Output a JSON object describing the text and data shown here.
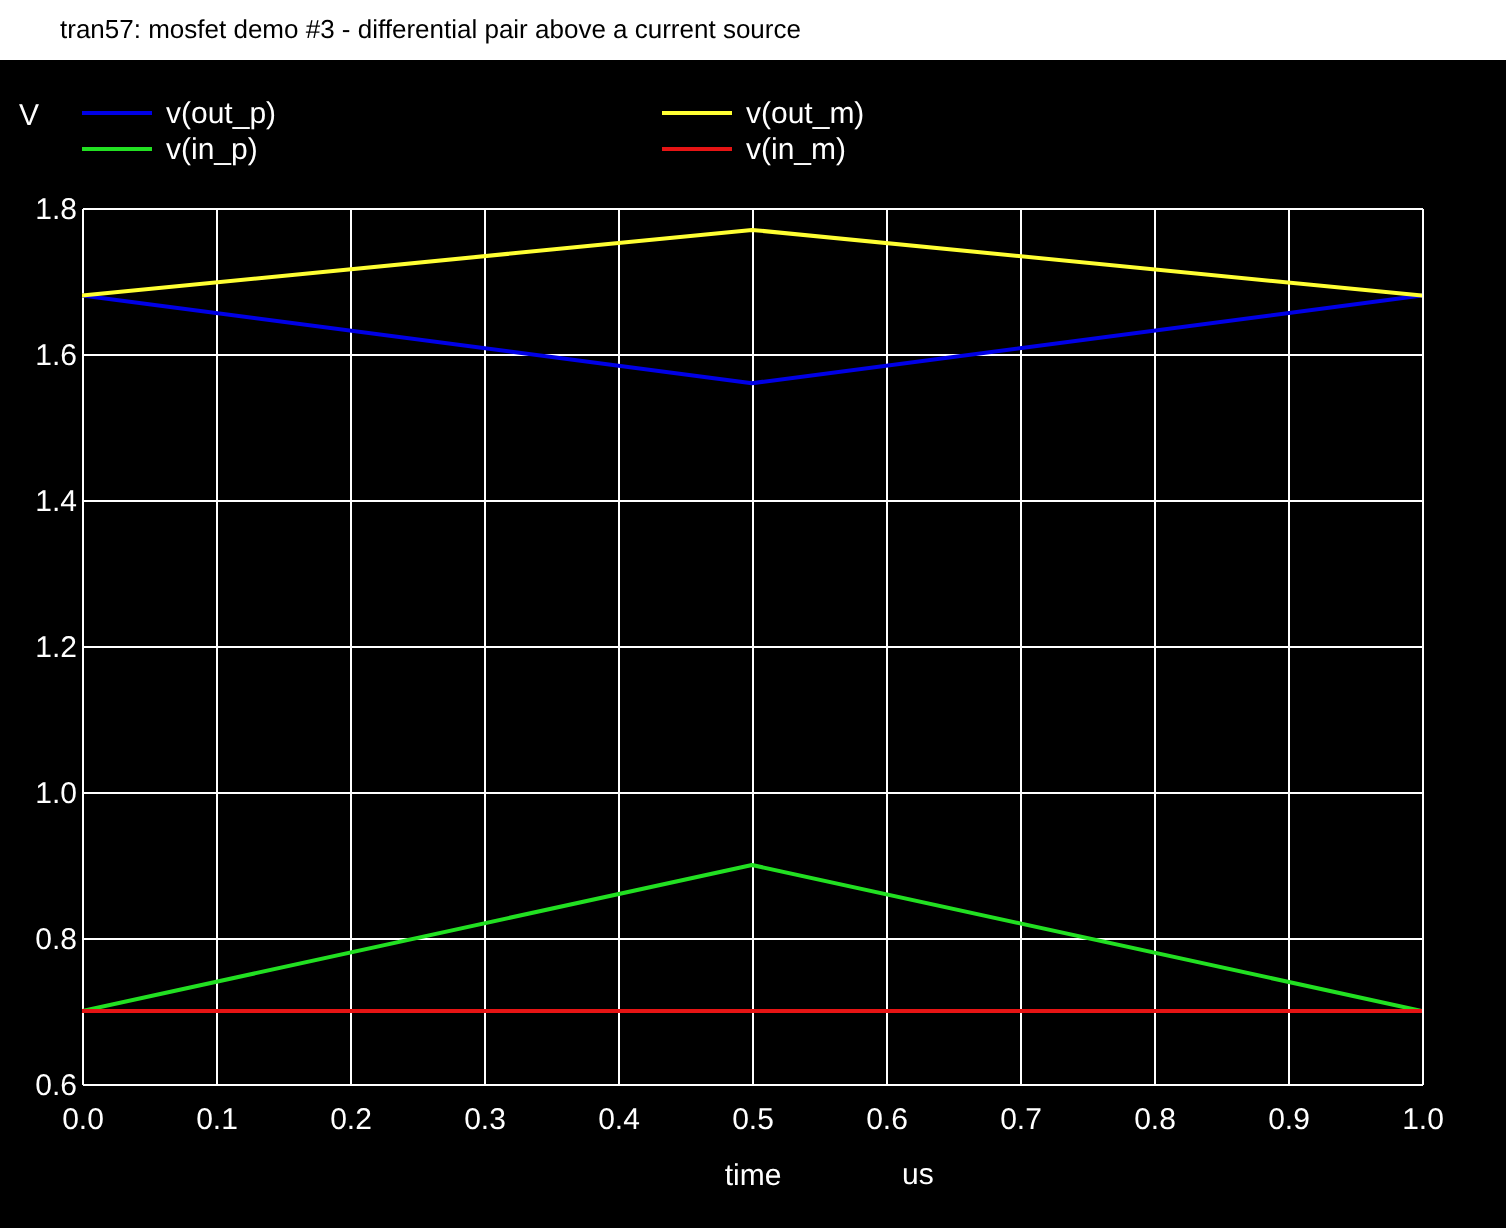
{
  "chart_data": {
    "type": "line",
    "title": "tran57: mosfet demo #3 - differential pair above a current source",
    "xlabel": "time",
    "ylabel": "V",
    "annotations": [
      "us"
    ],
    "x": [
      0,
      0.5,
      1
    ],
    "series": [
      {
        "name": "v(out_p)",
        "color": "#0000e6",
        "values": [
          1.68,
          1.56,
          1.68
        ]
      },
      {
        "name": "v(out_m)",
        "color": "#ffff33",
        "values": [
          1.68,
          1.77,
          1.68
        ]
      },
      {
        "name": "v(in_p)",
        "color": "#22e022",
        "values": [
          0.7,
          0.9,
          0.7
        ]
      },
      {
        "name": "v(in_m)",
        "color": "#e61414",
        "values": [
          0.7,
          0.7,
          0.7
        ]
      }
    ],
    "xlim": [
      0,
      1
    ],
    "xticks": [
      {
        "value": 0,
        "label": "0.0"
      },
      0.1,
      0.2,
      0.3,
      0.4,
      0.5,
      0.6,
      0.7,
      0.8,
      0.9,
      {
        "value": 1,
        "label": "1.0"
      }
    ],
    "ylim": [
      0.6,
      1.8
    ],
    "yticks": [
      0.6,
      0.8,
      {
        "value": 1,
        "label": "1.0"
      },
      1.2,
      1.4,
      1.6,
      1.8
    ],
    "grid": true,
    "legend": "top",
    "line_style": "solid"
  }
}
